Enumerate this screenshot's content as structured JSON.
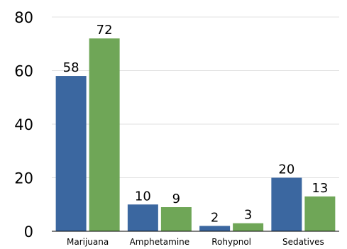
{
  "chart_data": {
    "type": "bar",
    "categories": [
      "Marijuana",
      "Amphetamine",
      "Rohypnol",
      "Sedatives"
    ],
    "series": [
      {
        "values": [
          58,
          10,
          2,
          20
        ],
        "color": "#3b67a0"
      },
      {
        "values": [
          72,
          9,
          3,
          13
        ],
        "color": "#6fa657"
      }
    ],
    "title": "",
    "xlabel": "",
    "ylabel": "",
    "ylim": [
      0,
      80
    ],
    "yticks": [
      "0",
      "20",
      "40",
      "60",
      "80"
    ],
    "grid": true,
    "legend": "none"
  }
}
